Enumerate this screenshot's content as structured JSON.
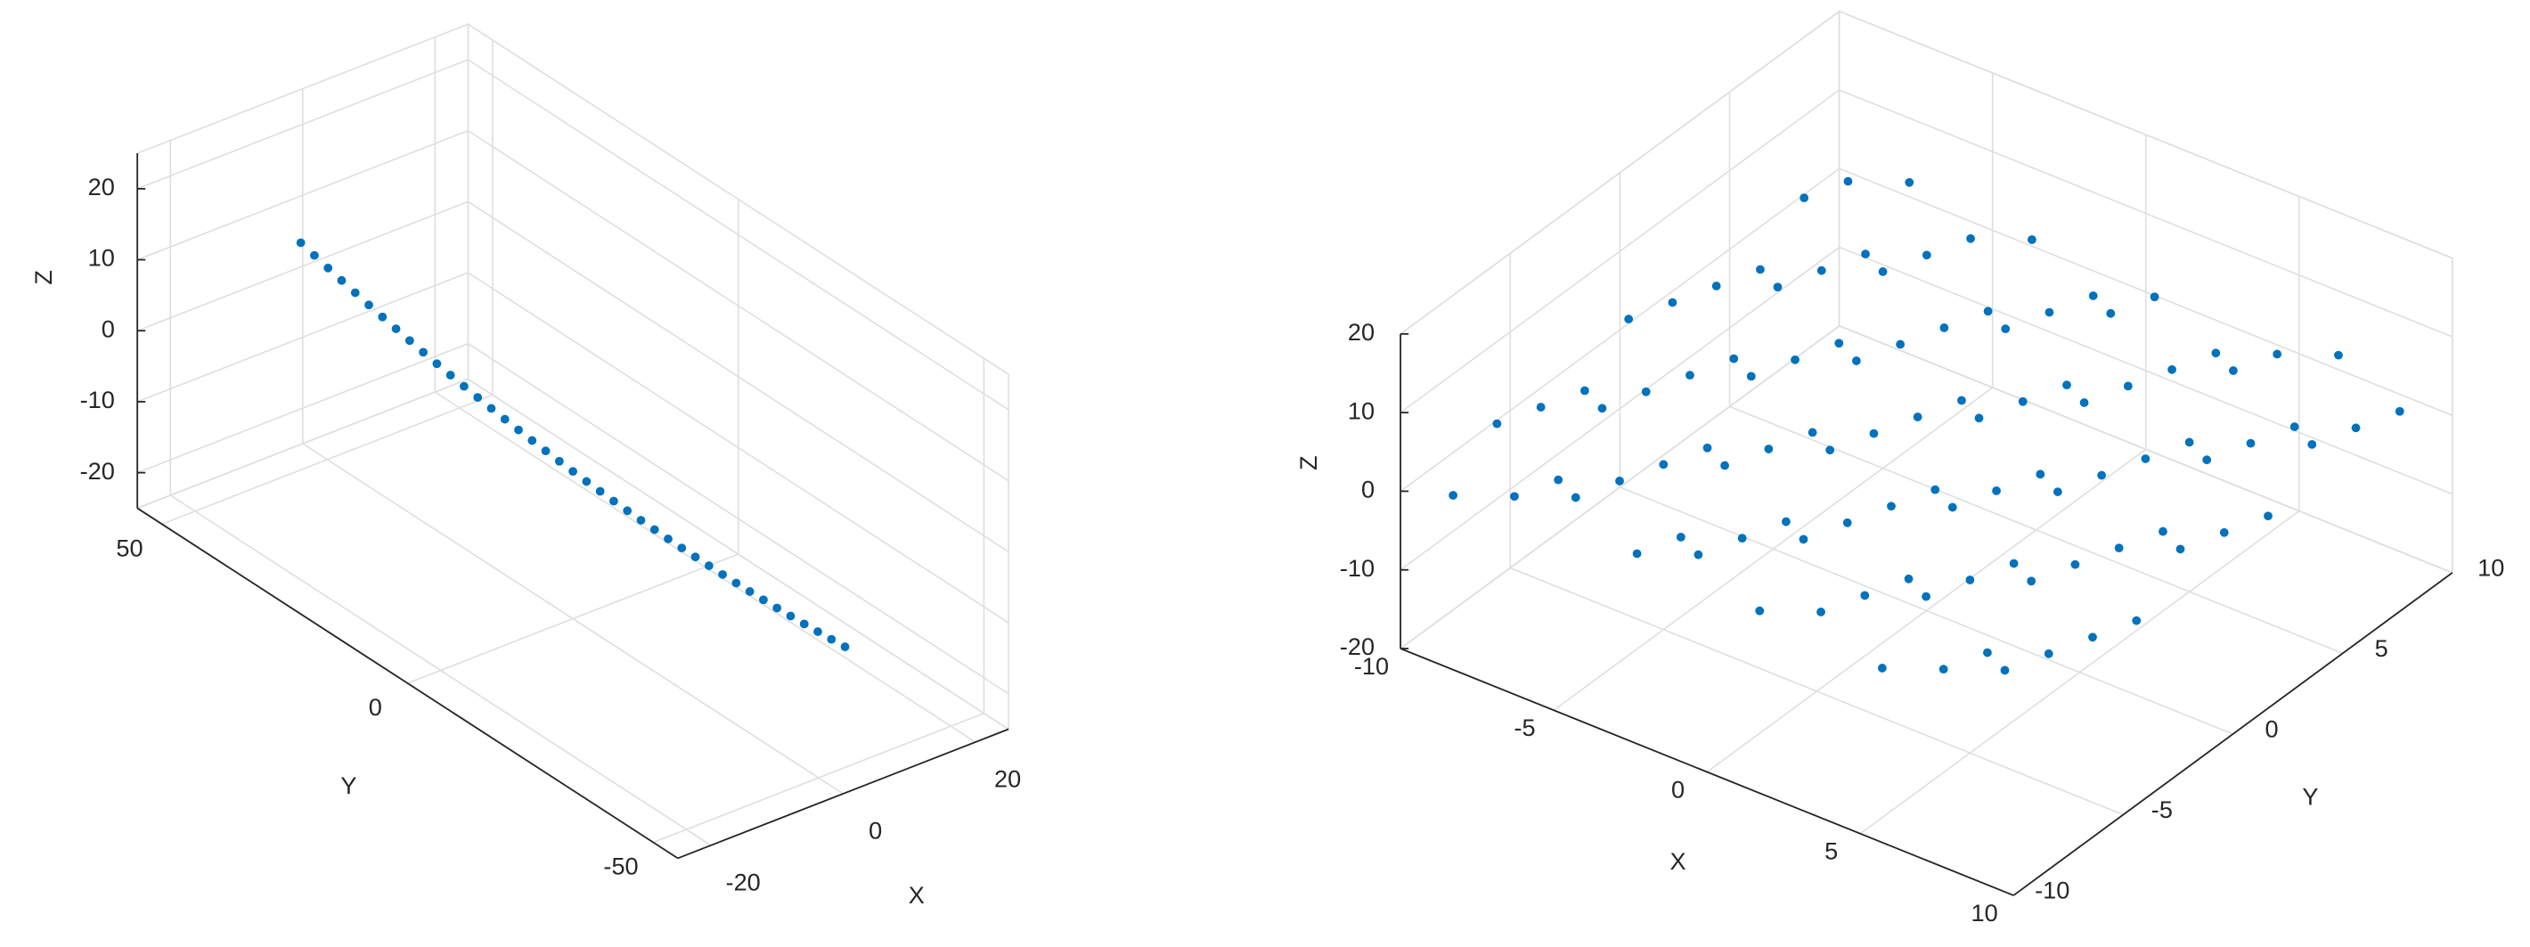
{
  "chart_data": [
    {
      "type": "scatter3d",
      "xlabel": "X",
      "ylabel": "Y",
      "zlabel": "Z",
      "color": "#0072bd",
      "grid": true,
      "xlim": [
        -25,
        25
      ],
      "ylim": [
        -55,
        55
      ],
      "zlim": [
        -25,
        25
      ],
      "xticks": [
        -20,
        0,
        20
      ],
      "yticks": [
        -50,
        0,
        50
      ],
      "zticks": [
        -20,
        -10,
        0,
        10,
        20
      ],
      "x": [
        -4,
        -3.8,
        -3.6,
        -3.4,
        -3.2,
        -3,
        -2.8,
        -2.6,
        -2.4,
        -2.2,
        -2,
        -1.8,
        -1.6,
        -1.4,
        -1.2,
        -1,
        -0.8,
        -0.6,
        -0.4,
        -0.2,
        0,
        0.2,
        0.4,
        0.6,
        0.8,
        1,
        1.2,
        1.4,
        1.6,
        1.8,
        2,
        2.2,
        2.4,
        2.6,
        2.8,
        3,
        3.2,
        3.4,
        3.6,
        3.8,
        4
      ],
      "y": [
        50,
        47.5,
        45,
        42.5,
        40,
        37.5,
        35,
        32.5,
        30,
        27.5,
        25,
        22.5,
        20,
        17.5,
        15,
        12.5,
        10,
        7.5,
        5,
        2.5,
        0,
        -2.5,
        -5,
        -7.5,
        -10,
        -12.5,
        -15,
        -17.5,
        -20,
        -22.5,
        -25,
        -27.5,
        -30,
        -32.5,
        -35,
        -37.5,
        -40,
        -42.5,
        -45,
        -47.5,
        -50
      ],
      "z": [
        7,
        6.26,
        5.54,
        4.83,
        4.15,
        3.48,
        2.84,
        2.21,
        1.6,
        1.01,
        0.44,
        -0.12,
        -0.65,
        -1.17,
        -1.66,
        -2.14,
        -2.6,
        -3.04,
        -3.46,
        -3.87,
        -4.25,
        -4.62,
        -4.96,
        -5.29,
        -5.6,
        -5.89,
        -6.16,
        -6.42,
        -6.65,
        -6.87,
        -7.06,
        -7.24,
        -7.4,
        -7.54,
        -7.66,
        -7.77,
        -7.85,
        -7.92,
        -7.96,
        -7.99,
        -8
      ]
    },
    {
      "type": "scatter3d",
      "xlabel": "X",
      "ylabel": "Y",
      "zlabel": "Z",
      "color": "#0072bd",
      "grid": true,
      "xlim": [
        -10,
        10
      ],
      "ylim": [
        -10,
        10
      ],
      "zlim": [
        -20,
        20
      ],
      "xticks": [
        -10,
        -5,
        0,
        5,
        10
      ],
      "yticks": [
        -10,
        -5,
        0,
        5,
        10
      ],
      "zticks": [
        -20,
        -10,
        0,
        10,
        20
      ],
      "x": [
        -9,
        -9,
        -9,
        -9,
        -9,
        -9,
        -9,
        -9,
        -9,
        -9,
        -7,
        -7,
        -7,
        -7,
        -7,
        -7,
        -7,
        -7,
        -7,
        -7,
        -5,
        -5,
        -5,
        -5,
        -5,
        -5,
        -5,
        -5,
        -5,
        -5,
        -3,
        -3,
        -3,
        -3,
        -3,
        -3,
        -3,
        -3,
        -3,
        -3,
        -1,
        -1,
        -1,
        -1,
        -1,
        -1,
        -1,
        -1,
        -1,
        -1,
        1,
        1,
        1,
        1,
        1,
        1,
        1,
        1,
        1,
        1,
        3,
        3,
        3,
        3,
        3,
        3,
        3,
        3,
        3,
        3,
        5,
        5,
        5,
        5,
        5,
        5,
        5,
        5,
        5,
        5,
        7,
        7,
        7,
        7,
        7,
        7,
        7,
        7,
        7,
        7,
        9,
        9,
        9,
        9,
        9,
        9,
        9,
        9,
        9,
        9
      ],
      "y": [
        -9,
        -7,
        -5,
        -3,
        -1,
        1,
        3,
        5,
        7,
        9,
        -9,
        -7,
        -5,
        -3,
        -1,
        1,
        3,
        5,
        7,
        9,
        -9,
        -7,
        -5,
        -3,
        -1,
        1,
        3,
        5,
        7,
        9,
        -9,
        -7,
        -5,
        -3,
        -1,
        1,
        3,
        5,
        7,
        9,
        -9,
        -7,
        -5,
        -3,
        -1,
        1,
        3,
        5,
        7,
        9,
        -9,
        -7,
        -5,
        -3,
        -1,
        1,
        3,
        5,
        7,
        9,
        -9,
        -7,
        -5,
        -3,
        -1,
        1,
        3,
        5,
        7,
        9,
        -9,
        -7,
        -5,
        -3,
        -1,
        1,
        3,
        5,
        7,
        9,
        -9,
        -7,
        -5,
        -3,
        -1,
        1,
        3,
        5,
        7,
        9,
        -9,
        -7,
        -5,
        -3,
        -1,
        1,
        3,
        5,
        7,
        9
      ],
      "z": [
        -1,
        4,
        2,
        0,
        5,
        3,
        1,
        -1,
        4,
        2,
        2,
        0,
        5,
        3,
        1,
        -1,
        4,
        2,
        0,
        5,
        5,
        3,
        1,
        -1,
        4,
        2,
        0,
        5,
        3,
        1,
        1,
        -1,
        4,
        2,
        0,
        5,
        3,
        1,
        -1,
        4,
        4,
        2,
        0,
        5,
        3,
        1,
        -1,
        4,
        2,
        0,
        0,
        5,
        3,
        1,
        -1,
        4,
        2,
        0,
        5,
        3,
        3,
        1,
        -1,
        4,
        2,
        0,
        5,
        3,
        1,
        -1,
        -1,
        4,
        2,
        0,
        5,
        3,
        1,
        -1,
        4,
        2,
        2,
        0,
        5,
        3,
        1,
        -1,
        4,
        2,
        0,
        5,
        5,
        3,
        1,
        -1,
        4,
        2,
        0,
        5,
        3,
        1
      ]
    }
  ]
}
